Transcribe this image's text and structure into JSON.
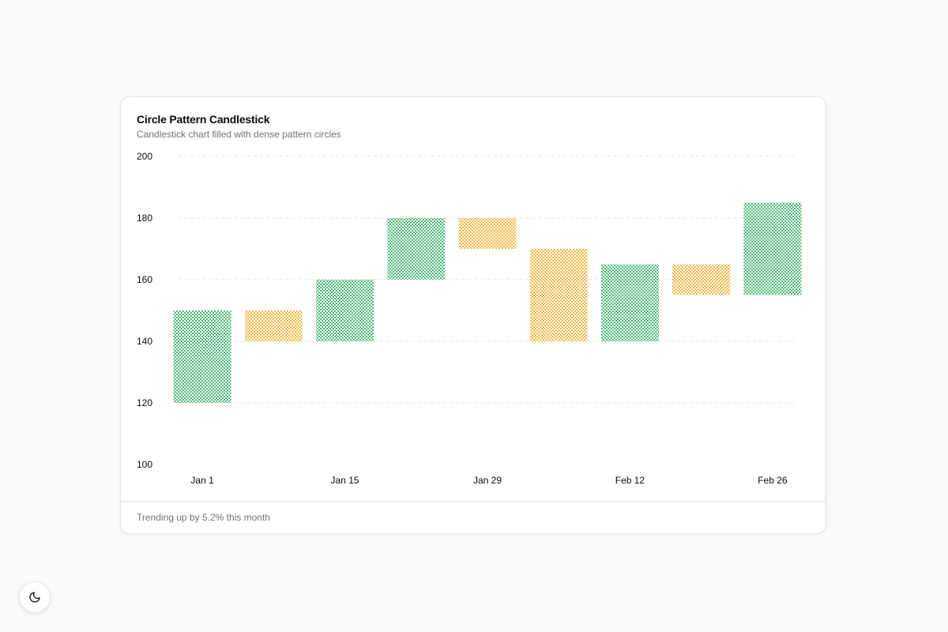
{
  "card": {
    "title": "Circle Pattern Candlestick",
    "subtitle": "Candlestick chart filled with dense pattern circles",
    "footer": "Trending up by 5.2% this month"
  },
  "theme_toggle": {
    "icon": "moon-icon"
  },
  "colors": {
    "up": "#16a34a",
    "down": "#f59e0b",
    "grid": "#e4e4e7",
    "axis_text": "#0a0a0a"
  },
  "chart_data": {
    "type": "candlestick",
    "title": "Circle Pattern Candlestick",
    "subtitle": "Candlestick chart filled with dense pattern circles",
    "ylim": [
      100,
      200
    ],
    "y_ticks": [
      100,
      120,
      140,
      160,
      180,
      200
    ],
    "x_tick_labels": [
      "Jan 1",
      "Jan 15",
      "Jan 29",
      "Feb 12",
      "Feb 26"
    ],
    "x_tick_indices": [
      0,
      2,
      4,
      6,
      8
    ],
    "grid": "horizontal dashed",
    "candles": [
      {
        "open": 120,
        "close": 150
      },
      {
        "open": 150,
        "close": 140
      },
      {
        "open": 140,
        "close": 160
      },
      {
        "open": 160,
        "close": 180
      },
      {
        "open": 180,
        "close": 170
      },
      {
        "open": 170,
        "close": 140
      },
      {
        "open": 140,
        "close": 165
      },
      {
        "open": 165,
        "close": 155
      },
      {
        "open": 155,
        "close": 185
      }
    ]
  }
}
